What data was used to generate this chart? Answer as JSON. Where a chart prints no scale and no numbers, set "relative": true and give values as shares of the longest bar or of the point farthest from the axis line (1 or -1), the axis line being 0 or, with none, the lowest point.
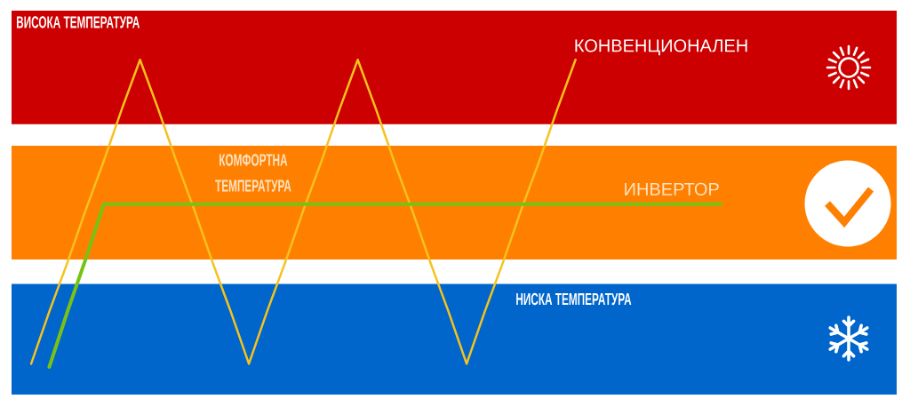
{
  "chart_data": {
    "type": "line",
    "relative": true,
    "line_style": "solid",
    "categories": [
      null,
      null,
      null,
      null,
      null,
      null,
      null,
      null,
      null,
      null,
      null,
      null,
      null,
      null,
      null,
      null,
      null,
      null,
      null,
      null,
      null,
      null,
      null,
      null,
      null,
      null,
      null,
      null,
      null,
      null,
      null,
      null,
      null,
      null,
      null,
      null,
      null,
      null,
      null
    ],
    "series": [
      {
        "name": "КОНВЕНЦИОНАЛЕН",
        "color": "#f6c21c",
        "values": [
          0.01,
          0.18,
          0.34,
          0.51,
          0.67,
          0.84,
          1,
          0.84,
          0.67,
          0.51,
          0.34,
          0.18,
          0.01,
          0.18,
          0.34,
          0.51,
          0.67,
          0.84,
          1,
          0.84,
          0.67,
          0.51,
          0.34,
          0.18,
          0.01,
          0.18,
          0.34,
          0.51,
          0.67,
          0.84,
          1,
          null,
          null,
          null,
          null,
          null,
          null,
          null,
          null
        ]
      },
      {
        "name": "ИНВЕРТОР",
        "color": "#79c214",
        "values": [
          null,
          0,
          0.18,
          0.35,
          0.53,
          0.53,
          0.53,
          0.53,
          0.53,
          0.53,
          0.53,
          0.53,
          0.53,
          0.53,
          0.53,
          0.53,
          0.53,
          0.53,
          0.53,
          0.53,
          0.53,
          0.53,
          0.53,
          0.53,
          0.53,
          0.53,
          0.53,
          0.53,
          0.53,
          0.53,
          0.53,
          0.53,
          0.53,
          0.53,
          0.53,
          0.53,
          0.53,
          0.53,
          0.53
        ]
      }
    ],
    "bands": [
      {
        "axis": "y",
        "from": 0.79,
        "to": 1.16,
        "label": "ВИСОКА ТЕМПЕРАТУРА",
        "color": "#cc0000"
      },
      {
        "axis": "y",
        "from": 0.35,
        "to": 0.72,
        "label": "КОМФОРТНА ТЕМПЕРАТУРА",
        "color": "#ff8000"
      },
      {
        "axis": "y",
        "from": -0.09,
        "to": 0.27,
        "label": "НИСКА ТЕМПЕРАТУРА",
        "color": "#0066cc"
      }
    ]
  }
}
